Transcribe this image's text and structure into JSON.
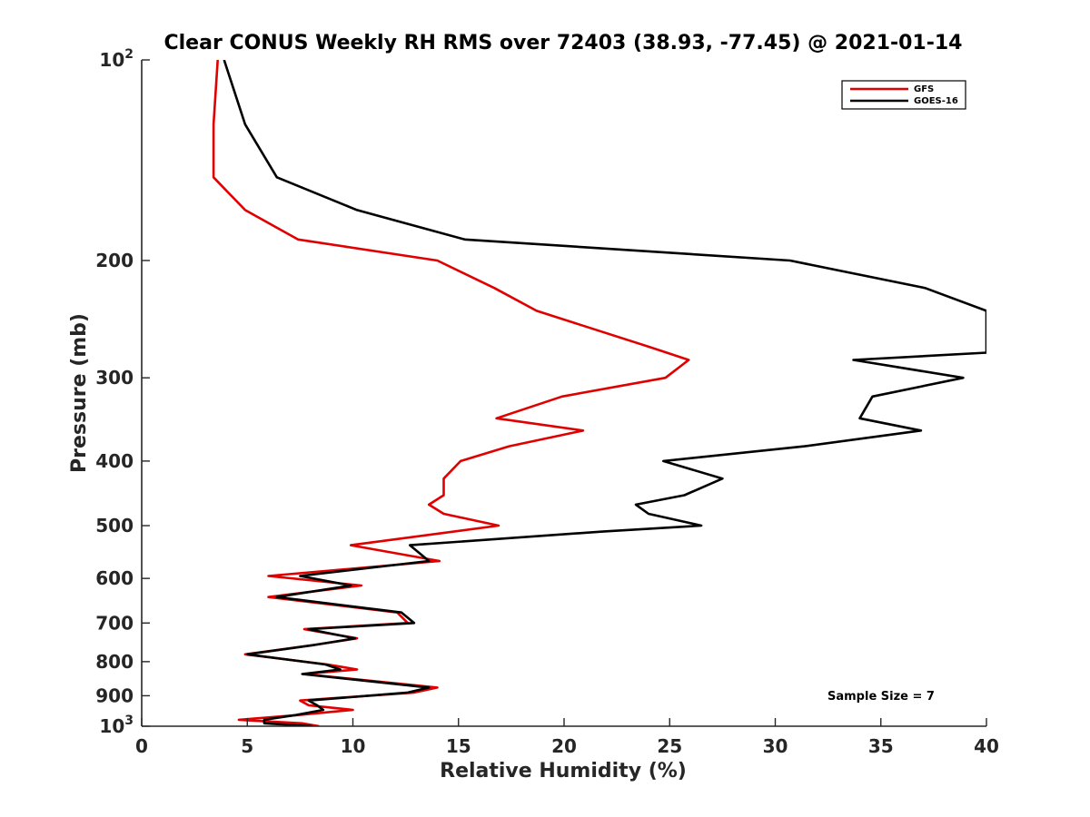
{
  "chart_data": {
    "type": "line",
    "title": "Clear CONUS Weekly RH RMS over 72403 (38.93, -77.45) @ 2021-01-14",
    "xlabel": "Relative Humidity (%)",
    "ylabel": "Pressure (mb)",
    "xlim": [
      0,
      40
    ],
    "ylim": [
      100,
      1000
    ],
    "yscale": "log",
    "y_reversed": true,
    "x_ticks": [
      "0",
      "5",
      "10",
      "15",
      "20",
      "25",
      "30",
      "35",
      "40"
    ],
    "y_ticks": [
      {
        "value": 100,
        "base": "10",
        "exp": "2"
      },
      {
        "value": 200,
        "base": "200",
        "exp": ""
      },
      {
        "value": 300,
        "base": "300",
        "exp": ""
      },
      {
        "value": 400,
        "base": "400",
        "exp": ""
      },
      {
        "value": 500,
        "base": "500",
        "exp": ""
      },
      {
        "value": 600,
        "base": "600",
        "exp": ""
      },
      {
        "value": 700,
        "base": "700",
        "exp": ""
      },
      {
        "value": 800,
        "base": "800",
        "exp": ""
      },
      {
        "value": 900,
        "base": "900",
        "exp": ""
      },
      {
        "value": 1000,
        "base": "10",
        "exp": "3"
      }
    ],
    "grid": false,
    "legend_position": "top-right",
    "annotation": "Sample Size = 7",
    "series": [
      {
        "name": "GFS",
        "color": "#e00000",
        "points": [
          [
            3.6,
            100
          ],
          [
            3.4,
            125
          ],
          [
            3.4,
            150
          ],
          [
            4.9,
            168
          ],
          [
            7.4,
            186
          ],
          [
            14.0,
            200
          ],
          [
            16.7,
            220
          ],
          [
            18.7,
            238
          ],
          [
            24.1,
            270
          ],
          [
            25.9,
            282
          ],
          [
            24.8,
            300
          ],
          [
            19.9,
            320
          ],
          [
            16.8,
            345
          ],
          [
            20.9,
            360
          ],
          [
            17.4,
            380
          ],
          [
            15.1,
            400
          ],
          [
            14.3,
            425
          ],
          [
            14.3,
            450
          ],
          [
            13.6,
            465
          ],
          [
            14.3,
            480
          ],
          [
            16.9,
            500
          ],
          [
            9.9,
            535
          ],
          [
            14.1,
            565
          ],
          [
            6.0,
            595
          ],
          [
            10.4,
            615
          ],
          [
            6.0,
            640
          ],
          [
            12.1,
            675
          ],
          [
            12.6,
            700
          ],
          [
            7.7,
            715
          ],
          [
            10.2,
            738
          ],
          [
            8.2,
            755
          ],
          [
            4.9,
            780
          ],
          [
            8.8,
            808
          ],
          [
            10.2,
            822
          ],
          [
            7.7,
            835
          ],
          [
            14.0,
            875
          ],
          [
            12.9,
            890
          ],
          [
            7.5,
            915
          ],
          [
            7.9,
            930
          ],
          [
            10.0,
            945
          ],
          [
            7.4,
            962
          ],
          [
            4.6,
            978
          ],
          [
            7.6,
            990
          ],
          [
            8.4,
            1000
          ]
        ]
      },
      {
        "name": "GOES-16",
        "color": "#000000",
        "points": [
          [
            3.9,
            100
          ],
          [
            4.9,
            125
          ],
          [
            6.4,
            150
          ],
          [
            10.2,
            168
          ],
          [
            15.3,
            186
          ],
          [
            30.7,
            200
          ],
          [
            37.1,
            220
          ],
          [
            40.0,
            238
          ],
          [
            40.0,
            275
          ],
          [
            33.7,
            282
          ],
          [
            38.9,
            300
          ],
          [
            34.6,
            320
          ],
          [
            34.0,
            345
          ],
          [
            36.9,
            360
          ],
          [
            31.4,
            380
          ],
          [
            24.7,
            400
          ],
          [
            27.5,
            425
          ],
          [
            25.7,
            450
          ],
          [
            23.4,
            465
          ],
          [
            24.0,
            480
          ],
          [
            26.5,
            500
          ],
          [
            21.9,
            510
          ],
          [
            12.7,
            535
          ],
          [
            13.6,
            565
          ],
          [
            7.5,
            595
          ],
          [
            9.9,
            615
          ],
          [
            6.4,
            640
          ],
          [
            12.3,
            675
          ],
          [
            12.9,
            700
          ],
          [
            7.9,
            715
          ],
          [
            10.1,
            738
          ],
          [
            8.2,
            755
          ],
          [
            5.0,
            780
          ],
          [
            8.7,
            808
          ],
          [
            9.4,
            822
          ],
          [
            7.6,
            835
          ],
          [
            13.6,
            875
          ],
          [
            12.6,
            890
          ],
          [
            7.9,
            915
          ],
          [
            8.3,
            930
          ],
          [
            8.6,
            945
          ],
          [
            7.3,
            962
          ],
          [
            5.8,
            978
          ],
          [
            5.8,
            990
          ],
          [
            8.1,
            1000
          ]
        ]
      }
    ]
  }
}
